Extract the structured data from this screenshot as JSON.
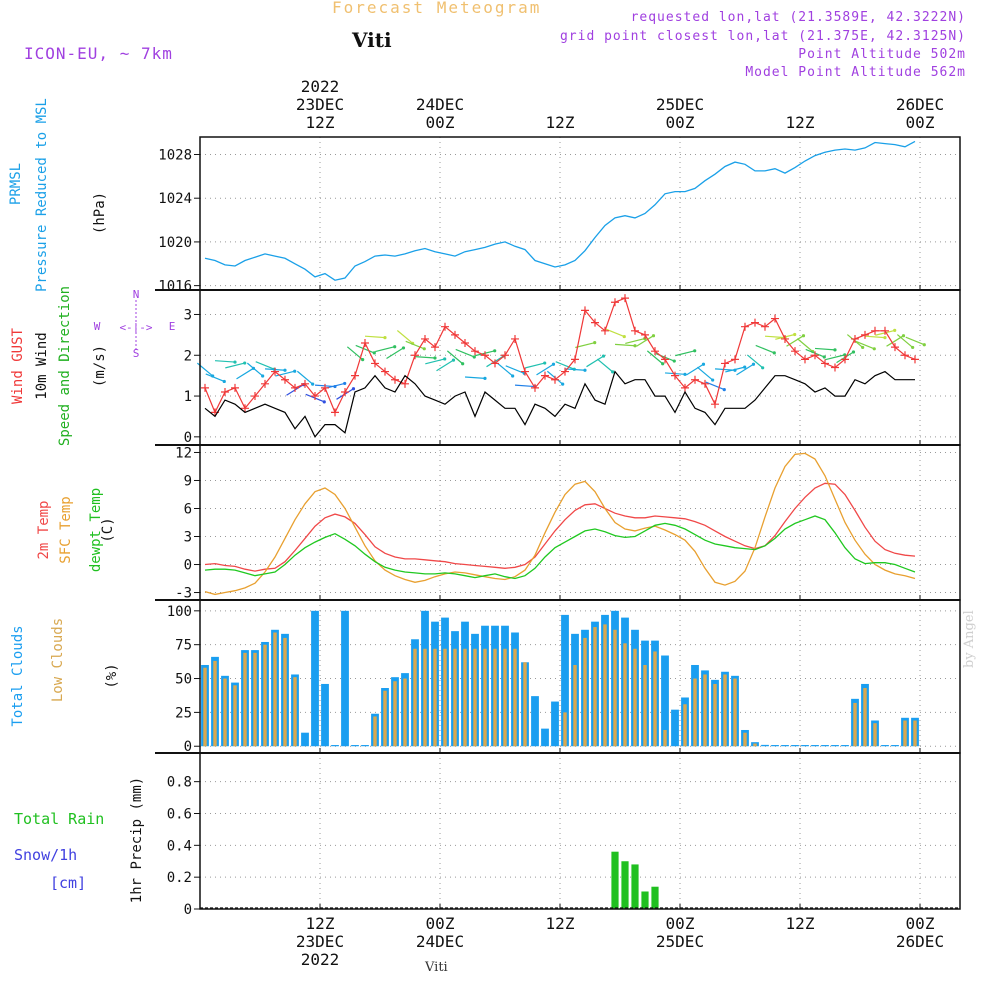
{
  "header": {
    "title": "Forecast Meteogram",
    "station": "Viti",
    "model": "ICON-EU, ~ 7km",
    "requested": "requested lon,lat (21.3589E, 42.3222N)",
    "grid_point": "grid point closest lon,lat (21.375E, 42.3125N)",
    "point_altitude": "Point Altitude 502m",
    "model_altitude": "Model Point Altitude 562m",
    "watermark": "by Angel",
    "bottom_station": "Viti"
  },
  "time_axis": {
    "top_labels": [
      {
        "hour": 12,
        "lines": [
          "2022",
          "23DEC",
          "12Z"
        ]
      },
      {
        "hour": 24,
        "lines": [
          "24DEC",
          "00Z"
        ]
      },
      {
        "hour": 36,
        "lines": [
          "12Z"
        ]
      },
      {
        "hour": 48,
        "lines": [
          "25DEC",
          "00Z"
        ]
      },
      {
        "hour": 60,
        "lines": [
          "12Z"
        ]
      },
      {
        "hour": 72,
        "lines": [
          "26DEC",
          "00Z"
        ]
      }
    ],
    "bottom_labels": [
      {
        "hour": 12,
        "lines": [
          "12Z",
          "23DEC",
          "2022"
        ]
      },
      {
        "hour": 24,
        "lines": [
          "00Z",
          "24DEC"
        ]
      },
      {
        "hour": 36,
        "lines": [
          "12Z"
        ]
      },
      {
        "hour": 48,
        "lines": [
          "00Z",
          "25DEC"
        ]
      },
      {
        "hour": 60,
        "lines": [
          "12Z"
        ]
      },
      {
        "hour": 72,
        "lines": [
          "00Z",
          "26DEC"
        ]
      }
    ],
    "start_hour": 0,
    "end_hour": 76,
    "note": "hours since 23DEC 00Z"
  },
  "panel_labels": {
    "pressure": [
      "PRMSL",
      "Pressure Reduced to MSL",
      "(hPa)"
    ],
    "wind": [
      "Wind GUST",
      "10m Wind",
      "Speed and Direction",
      "(m/s)"
    ],
    "compass": {
      "n": "N",
      "s": "S",
      "w": "W",
      "e": "E",
      "arrows": "<-|->"
    },
    "temp": [
      "2m Temp",
      "SFC Temp",
      "dewpt Temp",
      "(C)"
    ],
    "clouds": [
      "Total Clouds",
      "Low Clouds",
      "(%)"
    ],
    "precip": [
      "Total  Rain",
      "Snow/1h",
      "[cm]",
      "1hr Precip (mm)"
    ]
  },
  "colors": {
    "pressure": "#1aa0e8",
    "gust": "#f03838",
    "wind": "#000000",
    "t2m": "#f04848",
    "tsfc": "#e8a030",
    "dewpt": "#20c820",
    "total_clouds": "#1a9ef0",
    "low_clouds": "#d8a850",
    "rain": "#20c020",
    "snow": "#4040e0",
    "header": "#a040e0"
  },
  "chart_data": [
    {
      "type": "line",
      "title": "PRMSL Pressure Reduced to MSL",
      "ylabel": "(hPa)",
      "ylim": [
        1015.6,
        1029.6
      ],
      "yticks": [
        1016,
        1020,
        1024,
        1028
      ],
      "series": [
        {
          "name": "PRMSL",
          "x_start": 0.5,
          "x_step": 1,
          "values": [
            1018.5,
            1018.3,
            1017.9,
            1017.8,
            1018.3,
            1018.6,
            1018.9,
            1018.7,
            1018.5,
            1018.0,
            1017.5,
            1016.8,
            1017.1,
            1016.5,
            1016.7,
            1017.8,
            1018.2,
            1018.7,
            1018.8,
            1018.7,
            1018.9,
            1019.2,
            1019.4,
            1019.1,
            1018.9,
            1018.7,
            1019.1,
            1019.3,
            1019.5,
            1019.8,
            1020.0,
            1019.6,
            1019.3,
            1018.3,
            1018.0,
            1017.7,
            1017.9,
            1018.3,
            1019.2,
            1020.4,
            1021.5,
            1022.2,
            1022.4,
            1022.2,
            1022.6,
            1023.4,
            1024.4,
            1024.6,
            1024.6,
            1024.9,
            1025.6,
            1026.2,
            1026.9,
            1027.3,
            1027.1,
            1026.5,
            1026.5,
            1026.7,
            1026.3,
            1026.8,
            1027.4,
            1027.9,
            1028.2,
            1028.4,
            1028.5,
            1028.4,
            1028.6,
            1029.1,
            1029.0,
            1028.9,
            1028.7,
            1029.2
          ]
        }
      ]
    },
    {
      "type": "line",
      "title": "Wind GUST / 10m Wind Speed and Direction",
      "ylabel": "(m/s)",
      "ylim": [
        -0.2,
        3.6
      ],
      "yticks": [
        0,
        1,
        2,
        3
      ],
      "series": [
        {
          "name": "Wind GUST",
          "x_start": 0.5,
          "x_step": 1,
          "values": [
            1.2,
            0.6,
            1.1,
            1.2,
            0.7,
            1.0,
            1.3,
            1.6,
            1.4,
            1.2,
            1.3,
            1.0,
            1.2,
            0.6,
            1.1,
            1.5,
            2.3,
            1.8,
            1.6,
            1.4,
            1.3,
            2.0,
            2.4,
            2.2,
            2.7,
            2.5,
            2.3,
            2.1,
            2.0,
            1.8,
            2.0,
            2.4,
            1.6,
            1.2,
            1.5,
            1.4,
            1.6,
            1.9,
            3.1,
            2.8,
            2.6,
            3.3,
            3.4,
            2.6,
            2.5,
            2.1,
            1.9,
            1.5,
            1.2,
            1.4,
            1.3,
            0.8,
            1.8,
            1.9,
            2.7,
            2.8,
            2.7,
            2.9,
            2.4,
            2.1,
            1.9,
            2.0,
            1.8,
            1.7,
            1.9,
            2.4,
            2.5,
            2.6,
            2.6,
            2.2,
            2.0,
            1.9
          ]
        },
        {
          "name": "10m Wind",
          "x_start": 0.5,
          "x_step": 1,
          "values": [
            0.7,
            0.5,
            0.9,
            0.8,
            0.6,
            0.7,
            0.8,
            0.7,
            0.6,
            0.2,
            0.5,
            0.0,
            0.3,
            0.3,
            0.1,
            1.1,
            1.2,
            1.5,
            1.2,
            1.1,
            1.5,
            1.3,
            1.0,
            0.9,
            0.8,
            1.0,
            1.1,
            0.5,
            1.1,
            0.9,
            0.7,
            0.7,
            0.3,
            0.8,
            0.7,
            0.5,
            0.8,
            0.7,
            1.3,
            0.9,
            0.8,
            1.6,
            1.3,
            1.4,
            1.4,
            1.0,
            1.0,
            0.6,
            1.1,
            0.7,
            0.6,
            0.3,
            0.7,
            0.7,
            0.7,
            0.9,
            1.2,
            1.5,
            1.5,
            1.4,
            1.3,
            1.1,
            1.2,
            1.0,
            1.0,
            1.4,
            1.3,
            1.5,
            1.6,
            1.4,
            1.4,
            1.4
          ]
        }
      ]
    },
    {
      "type": "line",
      "title": "2m Temp / SFC Temp / dewpt Temp",
      "ylabel": "(C)",
      "ylim": [
        -3.8,
        12.8
      ],
      "yticks": [
        -3,
        0,
        3,
        6,
        9,
        12
      ],
      "series": [
        {
          "name": "2m Temp",
          "x_start": 0.5,
          "x_step": 1,
          "values": [
            0.0,
            0.1,
            -0.1,
            -0.2,
            -0.5,
            -0.7,
            -0.5,
            -0.4,
            0.3,
            1.5,
            2.8,
            4.1,
            5.0,
            5.4,
            5.1,
            4.4,
            3.2,
            1.9,
            1.2,
            0.8,
            0.6,
            0.6,
            0.5,
            0.4,
            0.3,
            0.1,
            0.0,
            -0.1,
            -0.2,
            -0.3,
            -0.4,
            -0.3,
            0.0,
            0.8,
            2.2,
            3.6,
            4.8,
            5.8,
            6.4,
            6.5,
            6.0,
            5.5,
            5.2,
            5.0,
            5.0,
            5.2,
            5.1,
            5.0,
            4.9,
            4.6,
            4.2,
            3.6,
            3.0,
            2.5,
            2.0,
            1.7,
            2.0,
            3.1,
            4.6,
            6.0,
            7.2,
            8.2,
            8.7,
            8.6,
            7.5,
            5.8,
            4.0,
            2.5,
            1.6,
            1.2,
            1.0,
            0.9
          ]
        },
        {
          "name": "SFC Temp",
          "x_start": 0.5,
          "x_step": 1,
          "values": [
            -2.9,
            -3.2,
            -3.0,
            -2.8,
            -2.5,
            -2.0,
            -0.8,
            0.8,
            2.8,
            4.8,
            6.5,
            7.8,
            8.2,
            7.5,
            6.0,
            4.0,
            2.0,
            0.4,
            -0.6,
            -1.2,
            -1.6,
            -1.9,
            -1.7,
            -1.3,
            -1.0,
            -0.8,
            -0.9,
            -1.1,
            -1.3,
            -1.5,
            -1.6,
            -1.3,
            -0.6,
            1.0,
            3.4,
            5.6,
            7.5,
            8.6,
            8.9,
            7.8,
            6.0,
            4.5,
            3.8,
            3.6,
            3.9,
            4.1,
            3.7,
            3.2,
            2.6,
            1.4,
            -0.4,
            -1.9,
            -2.2,
            -1.8,
            -0.7,
            1.8,
            5.1,
            8.2,
            10.5,
            11.8,
            11.9,
            11.3,
            9.5,
            7.0,
            4.5,
            2.6,
            1.1,
            0.0,
            -0.6,
            -1.0,
            -1.2,
            -1.5
          ]
        },
        {
          "name": "dewpt Temp",
          "x_start": 0.5,
          "x_step": 1,
          "values": [
            -0.6,
            -0.5,
            -0.5,
            -0.6,
            -0.9,
            -1.2,
            -1.0,
            -0.8,
            0.0,
            1.0,
            1.8,
            2.4,
            2.9,
            3.3,
            2.7,
            2.0,
            1.1,
            0.3,
            -0.3,
            -0.6,
            -0.8,
            -0.9,
            -1.0,
            -1.0,
            -0.9,
            -1.0,
            -1.2,
            -1.4,
            -1.2,
            -1.0,
            -1.3,
            -1.5,
            -1.2,
            -0.4,
            0.8,
            1.8,
            2.4,
            3.0,
            3.6,
            3.8,
            3.5,
            3.1,
            2.9,
            3.0,
            3.6,
            4.2,
            4.4,
            4.2,
            3.8,
            3.2,
            2.6,
            2.2,
            2.0,
            1.8,
            1.7,
            1.6,
            2.0,
            2.8,
            3.8,
            4.4,
            4.8,
            5.2,
            4.8,
            3.4,
            1.8,
            0.6,
            0.1,
            0.2,
            0.2,
            0.0,
            -0.4,
            -0.8
          ]
        }
      ]
    },
    {
      "type": "bar",
      "title": "Total Clouds / Low Clouds",
      "ylabel": "(%)",
      "ylim": [
        -5,
        108
      ],
      "yticks": [
        0,
        25,
        50,
        75,
        100
      ],
      "series": [
        {
          "name": "Total Clouds",
          "x_start": 0.5,
          "x_step": 1,
          "values": [
            60,
            66,
            52,
            47,
            71,
            71,
            77,
            86,
            83,
            53,
            10,
            100,
            46,
            0,
            100,
            0,
            0,
            24,
            43,
            51,
            54,
            79,
            100,
            92,
            95,
            85,
            92,
            83,
            89,
            89,
            89,
            84,
            62,
            37,
            13,
            33,
            97,
            83,
            86,
            92,
            97,
            100,
            95,
            86,
            78,
            78,
            67,
            27,
            36,
            60,
            56,
            49,
            55,
            52,
            12,
            3,
            1,
            0,
            0,
            0,
            0,
            0,
            0,
            0,
            0,
            35,
            46,
            19,
            0,
            0,
            21,
            21
          ]
        },
        {
          "name": "Low Clouds",
          "x_start": 0.5,
          "x_step": 1,
          "values": [
            58,
            63,
            50,
            45,
            69,
            69,
            75,
            84,
            80,
            51,
            0,
            0,
            0,
            0,
            0,
            0,
            0,
            22,
            41,
            48,
            50,
            72,
            72,
            72,
            72,
            72,
            72,
            72,
            72,
            72,
            72,
            72,
            62,
            0,
            0,
            0,
            25,
            60,
            80,
            88,
            90,
            86,
            76,
            72,
            60,
            70,
            12,
            0,
            31,
            50,
            53,
            46,
            53,
            50,
            10,
            2,
            0,
            0,
            0,
            0,
            0,
            0,
            0,
            0,
            0,
            32,
            43,
            17,
            0,
            0,
            19,
            19
          ]
        }
      ]
    },
    {
      "type": "bar",
      "title": "1hr Precip",
      "ylabel": "1hr Precip (mm)",
      "ylim": [
        0,
        0.98
      ],
      "yticks": [
        0,
        0.2,
        0.4,
        0.6,
        0.8
      ],
      "series": [
        {
          "name": "Total Rain",
          "x": [
            41.5,
            42.5,
            43.5,
            44.5,
            45.5
          ],
          "values": [
            0.36,
            0.3,
            0.28,
            0.11,
            0.14
          ]
        },
        {
          "name": "Snow/1h",
          "x": [],
          "values": []
        }
      ]
    }
  ]
}
